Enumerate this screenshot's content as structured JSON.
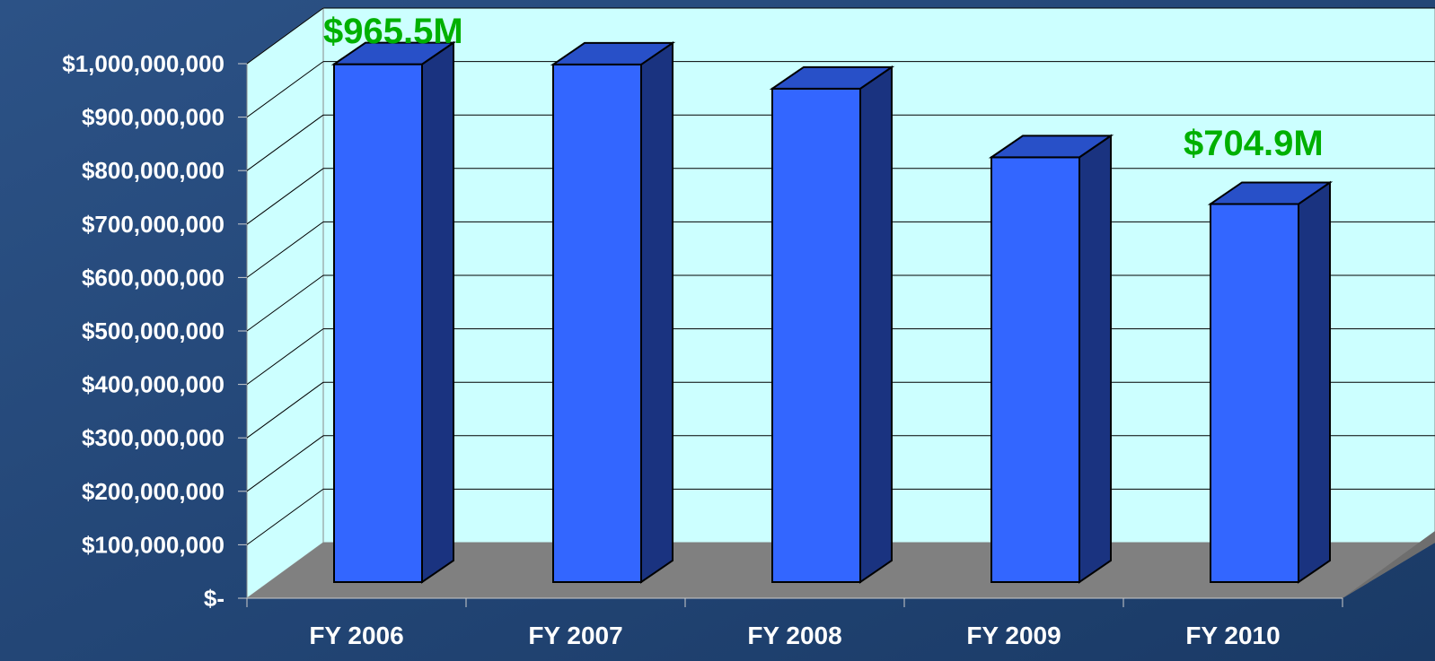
{
  "chart_data": {
    "type": "bar3d",
    "categories": [
      "FY 2006",
      "FY 2007",
      "FY 2008",
      "FY 2009",
      "FY 2010"
    ],
    "values": [
      965500000,
      965000000,
      920000000,
      792000000,
      704900000
    ],
    "value_labels": [
      "$965.5M",
      null,
      null,
      null,
      "$704.9M"
    ],
    "color": "#3366ff",
    "ylim": [
      0,
      1000000000
    ],
    "yticks": [
      {
        "value": 0,
        "label": "$-"
      },
      {
        "value": 100000000,
        "label": "$100,000,000"
      },
      {
        "value": 200000000,
        "label": "$200,000,000"
      },
      {
        "value": 300000000,
        "label": "$300,000,000"
      },
      {
        "value": 400000000,
        "label": "$400,000,000"
      },
      {
        "value": 500000000,
        "label": "$500,000,000"
      },
      {
        "value": 600000000,
        "label": "$600,000,000"
      },
      {
        "value": 700000000,
        "label": "$700,000,000"
      },
      {
        "value": 800000000,
        "label": "$800,000,000"
      },
      {
        "value": 900000000,
        "label": "$900,000,000"
      },
      {
        "value": 1000000000,
        "label": "$1,000,000,000"
      }
    ],
    "grid": true
  }
}
